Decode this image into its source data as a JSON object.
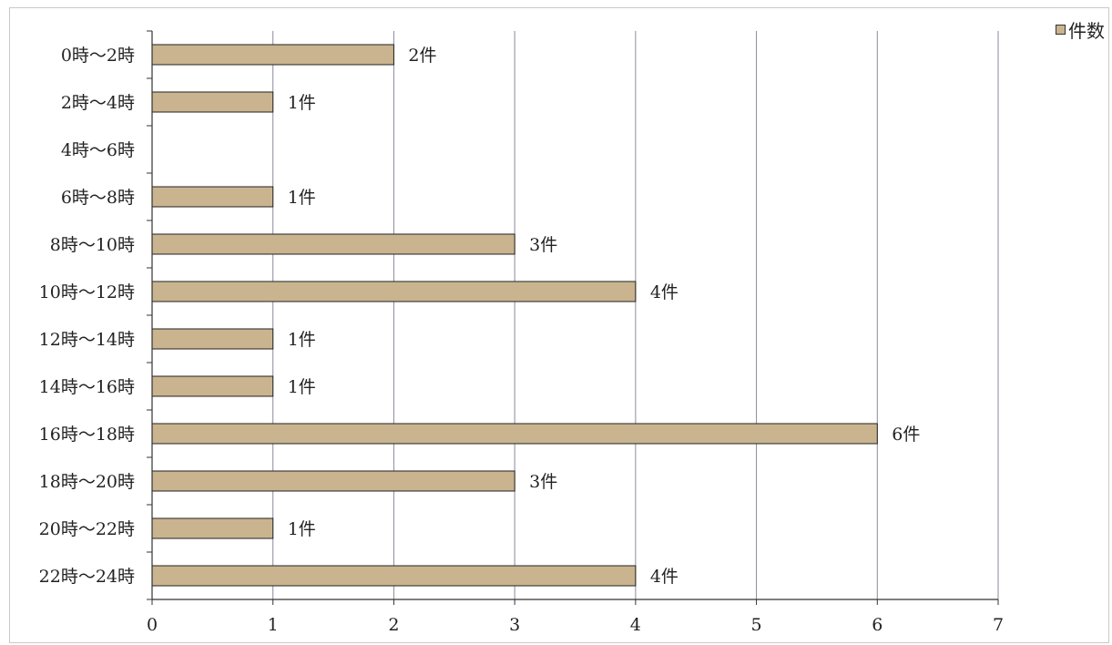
{
  "chart_data": {
    "type": "bar",
    "orientation": "horizontal",
    "categories": [
      "0時〜2時",
      "2時〜4時",
      "4時〜6時",
      "6時〜8時",
      "8時〜10時",
      "10時〜12時",
      "12時〜14時",
      "14時〜16時",
      "16時〜18時",
      "18時〜20時",
      "20時〜22時",
      "22時〜24時"
    ],
    "series": [
      {
        "name": "件数",
        "values": [
          2,
          1,
          0,
          1,
          3,
          4,
          1,
          1,
          6,
          3,
          1,
          4
        ],
        "data_labels": [
          "2件",
          "1件",
          "",
          "1件",
          "3件",
          "4件",
          "1件",
          "1件",
          "6件",
          "3件",
          "1件",
          "4件"
        ]
      }
    ],
    "xticks": [
      "0",
      "1",
      "2",
      "3",
      "4",
      "5",
      "6",
      "7"
    ],
    "xlim": [
      0,
      7
    ],
    "grid": true,
    "legend_position": "top-right",
    "bar_color": "#c9b48f"
  }
}
